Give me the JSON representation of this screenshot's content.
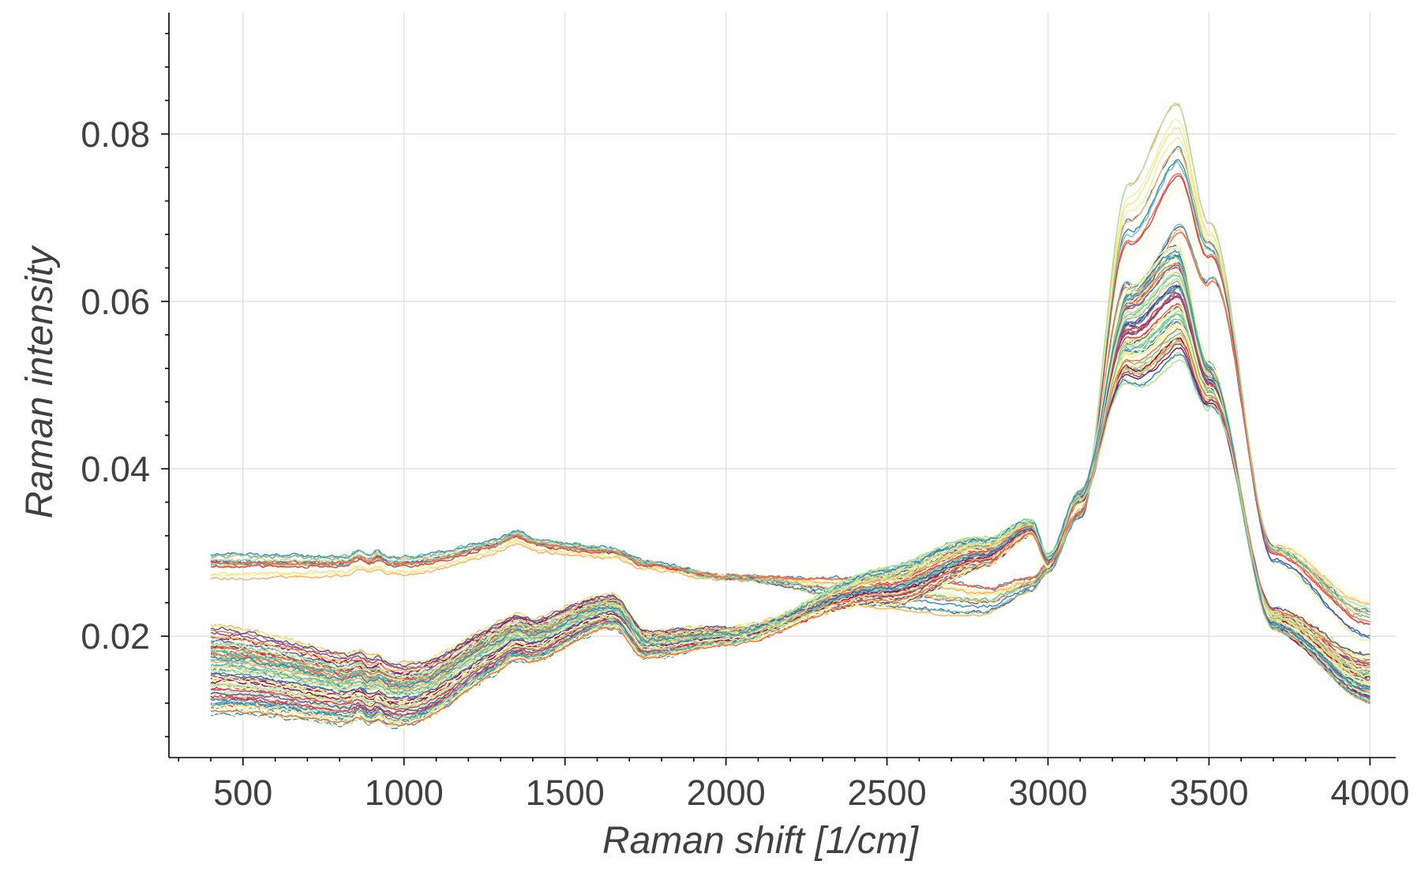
{
  "chart_data": {
    "type": "line",
    "title": "",
    "xlabel": "Raman shift [1/cm]",
    "ylabel": "Raman intensity",
    "xlim": [
      270,
      4080
    ],
    "ylim": [
      0.0055,
      0.0945
    ],
    "xticks": [
      500,
      1000,
      1500,
      2000,
      2500,
      3000,
      3500,
      4000
    ],
    "xtick_labels": [
      "500",
      "1000",
      "1500",
      "2000",
      "2500",
      "3000",
      "3500",
      "4000"
    ],
    "yticks": [
      0.02,
      0.04,
      0.06,
      0.08
    ],
    "ytick_labels": [
      "0.02",
      "0.04",
      "0.06",
      "0.08"
    ],
    "grid": true,
    "legend": "none",
    "colormap": "Spectral",
    "palette": [
      "#9e0142",
      "#d53e4f",
      "#f46d43",
      "#fdae61",
      "#fee08b",
      "#ffffbf",
      "#e6f598",
      "#abdda4",
      "#66c2a5",
      "#3288bd",
      "#5e4fa2"
    ],
    "series_count": 96,
    "x_range": [
      400,
      4000
    ],
    "series_profiles": {
      "description_units": "intensity",
      "anchor_x": [
        400,
        1000,
        1350,
        1650,
        1750,
        2000,
        2500,
        2800,
        2950,
        3000,
        3100,
        3250,
        3400,
        3500,
        3700,
        4000
      ],
      "high_baseline_group": {
        "count": 16,
        "values": [
          0.0285,
          0.0285,
          0.031,
          0.03,
          0.0285,
          0.027,
          0.025,
          0.024,
          0.026,
          0.028,
          0.035,
          0.075,
          0.085,
          0.07,
          0.03,
          0.022
        ]
      },
      "low_baseline_group": {
        "count": 80,
        "values": [
          0.016,
          0.013,
          0.019,
          0.023,
          0.019,
          0.02,
          0.026,
          0.03,
          0.033,
          0.029,
          0.037,
          0.06,
          0.065,
          0.052,
          0.022,
          0.015
        ]
      },
      "peak_max_range": [
        0.042,
        0.091
      ],
      "end_value_range": [
        0.0105,
        0.0245
      ]
    }
  }
}
